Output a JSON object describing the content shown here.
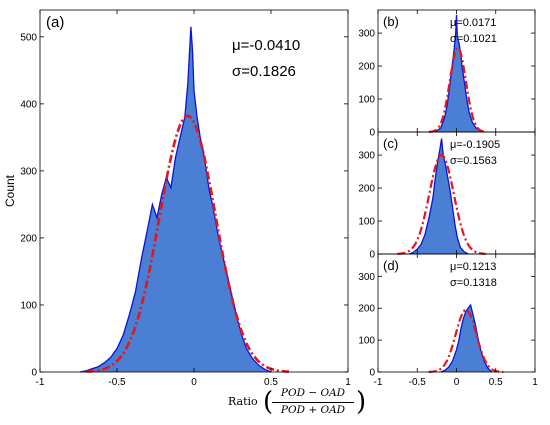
{
  "chart_data": [
    {
      "id": "a",
      "type": "area",
      "panel_label": "(a)",
      "ylabel": "Count",
      "xlabel": "Ratio (POD − OAD) / (POD + OAD)",
      "xlim": [
        -1,
        1
      ],
      "ylim": [
        0,
        540
      ],
      "xticks": [
        -1,
        -0.5,
        0,
        0.5,
        1
      ],
      "xtick_labels": [
        "-1",
        "-0.5",
        "0",
        "0.5",
        "1"
      ],
      "yticks": [
        0,
        100,
        200,
        300,
        400,
        500
      ],
      "ytick_labels": [
        "0",
        "100",
        "200",
        "300",
        "400",
        "500"
      ],
      "mu_label": "μ=-0.0410",
      "sigma_label": "σ=0.1826",
      "mu": -0.041,
      "sigma": 0.1826,
      "fit_peak": 382,
      "histogram": {
        "x": [
          -0.74,
          -0.7,
          -0.66,
          -0.62,
          -0.58,
          -0.54,
          -0.5,
          -0.46,
          -0.42,
          -0.38,
          -0.34,
          -0.3,
          -0.27,
          -0.24,
          -0.21,
          -0.18,
          -0.15,
          -0.12,
          -0.09,
          -0.06,
          -0.04,
          -0.02,
          -0.01,
          0.0,
          0.02,
          0.04,
          0.06,
          0.08,
          0.1,
          0.12,
          0.14,
          0.16,
          0.18,
          0.2,
          0.22,
          0.25,
          0.28,
          0.31,
          0.34,
          0.38,
          0.42,
          0.46,
          0.5
        ],
        "y": [
          0,
          2,
          5,
          8,
          14,
          22,
          35,
          55,
          85,
          120,
          170,
          215,
          250,
          230,
          265,
          290,
          275,
          320,
          350,
          380,
          430,
          515,
          480,
          420,
          380,
          350,
          330,
          300,
          270,
          250,
          225,
          200,
          180,
          160,
          140,
          110,
          80,
          55,
          35,
          20,
          10,
          4,
          0
        ]
      }
    },
    {
      "id": "b",
      "type": "area",
      "panel_label": "(b)",
      "xlim": [
        -1,
        1
      ],
      "ylim": [
        0,
        370
      ],
      "yticks": [
        0,
        100,
        200,
        300
      ],
      "ytick_labels": [
        "0",
        "100",
        "200",
        "300"
      ],
      "mu_label": "μ=0.0171",
      "sigma_label": "σ=0.1021",
      "mu": 0.0171,
      "sigma": 0.1021,
      "fit_peak": 255,
      "histogram": {
        "x": [
          -0.3,
          -0.25,
          -0.2,
          -0.15,
          -0.12,
          -0.09,
          -0.06,
          -0.03,
          -0.01,
          0.0,
          0.01,
          0.03,
          0.05,
          0.07,
          0.1,
          0.13,
          0.16,
          0.2,
          0.25,
          0.3,
          0.35
        ],
        "y": [
          0,
          4,
          12,
          45,
          80,
          130,
          190,
          250,
          300,
          355,
          290,
          270,
          245,
          200,
          150,
          100,
          60,
          30,
          12,
          4,
          0
        ]
      }
    },
    {
      "id": "c",
      "type": "area",
      "panel_label": "(c)",
      "xlim": [
        -1,
        1
      ],
      "ylim": [
        0,
        370
      ],
      "yticks": [
        0,
        100,
        200,
        300
      ],
      "ytick_labels": [
        "0",
        "100",
        "200",
        "300"
      ],
      "mu_label": "μ=-0.1905",
      "sigma_label": "σ=0.1563",
      "mu": -0.1905,
      "sigma": 0.1563,
      "fit_peak": 300,
      "histogram": {
        "x": [
          -0.6,
          -0.55,
          -0.5,
          -0.45,
          -0.4,
          -0.35,
          -0.3,
          -0.27,
          -0.24,
          -0.21,
          -0.19,
          -0.17,
          -0.14,
          -0.11,
          -0.08,
          -0.05,
          -0.02,
          0.01,
          0.05,
          0.1,
          0.15
        ],
        "y": [
          0,
          5,
          15,
          30,
          60,
          110,
          170,
          230,
          280,
          320,
          350,
          300,
          270,
          230,
          190,
          140,
          90,
          50,
          20,
          6,
          0
        ]
      }
    },
    {
      "id": "d",
      "type": "area",
      "panel_label": "(d)",
      "xlim": [
        -1,
        1
      ],
      "ylim": [
        0,
        370
      ],
      "xticks": [
        -1,
        -0.5,
        0,
        0.5,
        1
      ],
      "xtick_labels": [
        "-1",
        "-0.5",
        "0",
        "0.5",
        "1"
      ],
      "yticks": [
        0,
        100,
        200,
        300
      ],
      "ytick_labels": [
        "0",
        "100",
        "200",
        "300"
      ],
      "mu_label": "μ=0.1213",
      "sigma_label": "σ=0.1318",
      "mu": 0.1213,
      "sigma": 0.1318,
      "fit_peak": 195,
      "histogram": {
        "x": [
          -0.2,
          -0.15,
          -0.1,
          -0.05,
          0.0,
          0.03,
          0.06,
          0.09,
          0.12,
          0.15,
          0.18,
          0.21,
          0.24,
          0.27,
          0.3,
          0.35,
          0.4,
          0.45
        ],
        "y": [
          0,
          5,
          15,
          35,
          70,
          100,
          140,
          170,
          190,
          200,
          210,
          180,
          150,
          110,
          75,
          35,
          12,
          0
        ]
      }
    }
  ],
  "xlabel_parts": {
    "prefix": "Ratio",
    "numerator": "POD − OAD",
    "denominator": "POD + OAD",
    "paren_left": "(",
    "paren_right": ")"
  },
  "colors": {
    "fill": "#4a7fd4",
    "outline": "#0a14d8",
    "fit": "#e8141c",
    "axis": "#000000"
  }
}
